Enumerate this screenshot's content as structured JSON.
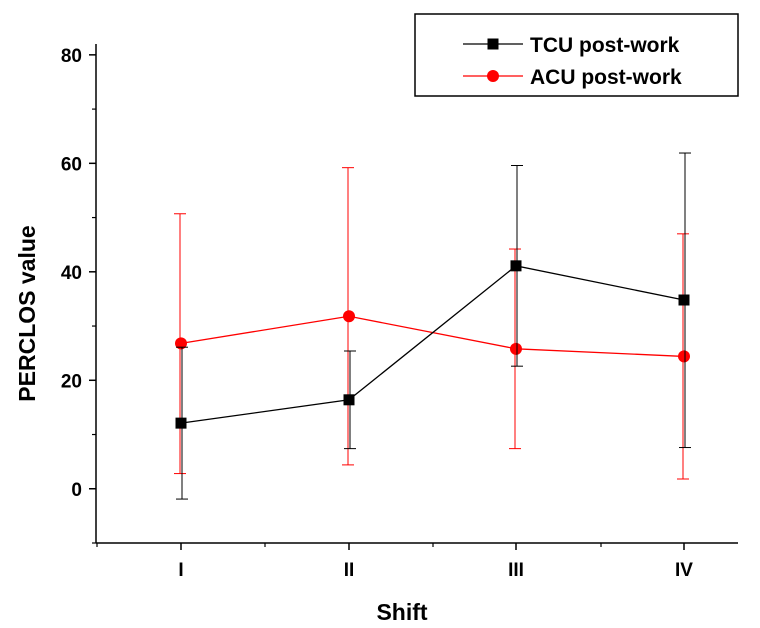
{
  "chart_data": {
    "type": "line",
    "xlabel": "Shift",
    "ylabel": "PERCLOS value",
    "categories": [
      "I",
      "II",
      "III",
      "IV"
    ],
    "ylim": [
      -10,
      82
    ],
    "yticks": [
      0,
      20,
      40,
      60,
      80
    ],
    "grid": false,
    "legend_position": "top-right",
    "series": [
      {
        "name": "TCU post-work",
        "color": "#000000",
        "marker": "square",
        "values": [
          12.1,
          16.4,
          41.1,
          34.8
        ],
        "error_low": [
          -1.9,
          7.4,
          22.6,
          7.6
        ],
        "error_high": [
          26.1,
          25.4,
          59.6,
          61.9
        ]
      },
      {
        "name": "ACU post-work",
        "color": "#ff0000",
        "marker": "circle",
        "values": [
          26.8,
          31.8,
          25.8,
          24.4
        ],
        "error_low": [
          2.8,
          4.4,
          7.4,
          1.8
        ],
        "error_high": [
          50.7,
          59.2,
          44.2,
          47.0
        ]
      }
    ]
  }
}
